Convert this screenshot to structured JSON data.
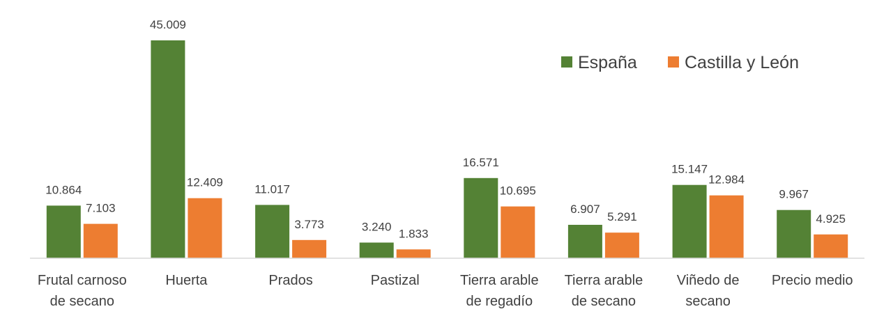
{
  "chart_data": {
    "type": "bar",
    "categories": [
      [
        "Frutal carnoso",
        "de secano"
      ],
      [
        "Huerta"
      ],
      [
        "Prados"
      ],
      [
        "Pastizal"
      ],
      [
        "Tierra arable",
        "de regadío"
      ],
      [
        "Tierra arable",
        "de secano"
      ],
      [
        "Viñedo de",
        "secano"
      ],
      [
        "Precio medio"
      ]
    ],
    "series": [
      {
        "name": "España",
        "color": "#548235",
        "values": [
          10864,
          45009,
          11017,
          3240,
          16571,
          6907,
          15147,
          9967
        ],
        "labels": [
          "10.864",
          "45.009",
          "11.017",
          "3.240",
          "16.571",
          "6.907",
          "15.147",
          "9.967"
        ]
      },
      {
        "name": "Castilla y León",
        "color": "#ED7D31",
        "values": [
          7103,
          12409,
          3773,
          1833,
          10695,
          5291,
          12984,
          4925
        ],
        "labels": [
          "7.103",
          "12.409",
          "3.773",
          "1.833",
          "10.695",
          "5.291",
          "12.984",
          "4.925"
        ]
      }
    ],
    "ylim": [
      0,
      45009
    ],
    "grid": false,
    "legend_position": "top-right"
  }
}
